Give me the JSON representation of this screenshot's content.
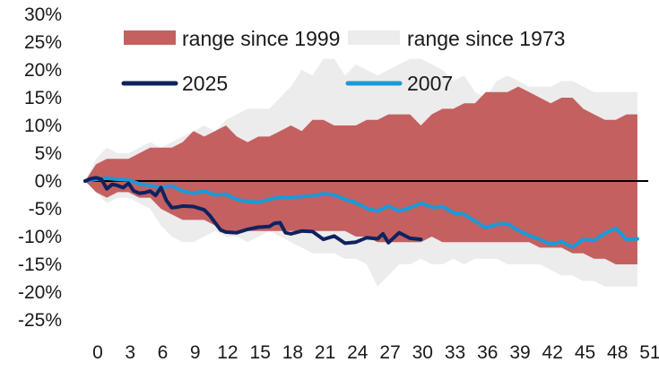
{
  "chart_data": {
    "type": "line",
    "xlim": [
      0,
      52
    ],
    "ylim": [
      -25,
      30
    ],
    "y_ticks": [
      "30%",
      "25%",
      "20%",
      "15%",
      "10%",
      "5%",
      "0%",
      "-5%",
      "-10%",
      "-15%",
      "-20%",
      "-25%"
    ],
    "y_tick_values": [
      30,
      25,
      20,
      15,
      10,
      5,
      0,
      -5,
      -10,
      -15,
      -20,
      -25
    ],
    "x_ticks": [
      "0",
      "3",
      "6",
      "9",
      "12",
      "15",
      "18",
      "21",
      "24",
      "27",
      "30",
      "33",
      "36",
      "39",
      "42",
      "45",
      "48",
      "51"
    ],
    "x_tick_values": [
      0,
      3,
      6,
      9,
      12,
      15,
      18,
      21,
      24,
      27,
      30,
      33,
      36,
      39,
      42,
      45,
      48,
      51
    ],
    "legend": {
      "range_1999": "range since 1999",
      "range_1973": "range since 1973",
      "s2025": "2025",
      "s2007": "2007"
    },
    "colors": {
      "range_1999": "#c46060",
      "range_1973": "#ececec",
      "s2025": "#0f2260",
      "s2007": "#1a9ad8"
    },
    "ranges": [
      {
        "name": "range since 1973",
        "x": [
          0,
          1,
          2,
          3,
          4,
          5,
          6,
          7,
          8,
          9,
          10,
          11,
          12,
          13,
          14,
          15,
          16,
          17,
          18,
          19,
          20,
          21,
          22,
          23,
          24,
          25,
          26,
          27,
          28,
          29,
          30,
          31,
          32,
          33,
          34,
          35,
          36,
          37,
          38,
          39,
          40,
          41,
          42,
          43,
          44,
          45,
          46,
          47,
          48,
          49,
          50,
          51
        ],
        "upper": [
          0,
          4,
          6,
          5,
          5,
          6,
          7,
          6,
          7,
          8,
          9,
          10,
          9,
          11,
          12,
          13,
          13,
          13,
          15,
          17,
          20,
          19,
          22,
          22,
          19,
          21,
          20,
          19,
          20,
          21,
          22,
          22,
          21,
          20,
          18,
          19,
          16,
          15,
          18,
          19,
          18,
          17,
          17,
          17,
          18,
          18,
          17,
          16,
          16,
          16,
          16,
          16
        ],
        "lower": [
          0,
          -2,
          -4,
          -3,
          -3,
          -4,
          -5,
          -8,
          -10,
          -11,
          -11,
          -10,
          -9,
          -10,
          -10,
          -11,
          -10,
          -9,
          -10,
          -11,
          -12,
          -13,
          -13,
          -13,
          -14,
          -14,
          -15,
          -19,
          -17,
          -15,
          -15,
          -14,
          -15,
          -15,
          -14,
          -15,
          -14,
          -14,
          -14,
          -15,
          -15,
          -15,
          -15,
          -16,
          -17,
          -17,
          -18,
          -18,
          -19,
          -19,
          -19,
          -19
        ]
      },
      {
        "name": "range since 1999",
        "x": [
          0,
          1,
          2,
          3,
          4,
          5,
          6,
          7,
          8,
          9,
          10,
          11,
          12,
          13,
          14,
          15,
          16,
          17,
          18,
          19,
          20,
          21,
          22,
          23,
          24,
          25,
          26,
          27,
          28,
          29,
          30,
          31,
          32,
          33,
          34,
          35,
          36,
          37,
          38,
          39,
          40,
          41,
          42,
          43,
          44,
          45,
          46,
          47,
          48,
          49,
          50,
          51
        ],
        "upper": [
          0,
          3,
          4,
          4,
          4,
          5,
          6,
          6,
          6,
          7,
          9,
          8,
          9,
          10,
          8,
          7,
          8,
          8,
          9,
          10,
          9,
          11,
          11,
          10,
          10,
          10,
          11,
          11,
          12,
          12,
          12,
          10,
          12,
          13,
          13,
          14,
          14,
          16,
          16,
          16,
          17,
          16,
          15,
          14,
          15,
          15,
          13,
          12,
          11,
          11,
          12,
          12
        ],
        "lower": [
          0,
          -2,
          -3,
          -2,
          -2,
          -3,
          -3,
          -5,
          -6,
          -7,
          -7,
          -7,
          -8,
          -9,
          -9,
          -9,
          -9,
          -9,
          -9,
          -9,
          -9,
          -9,
          -9,
          -9,
          -9,
          -10,
          -10,
          -11,
          -11,
          -11,
          -11,
          -11,
          -10,
          -11,
          -11,
          -11,
          -11,
          -11,
          -11,
          -11,
          -11,
          -11,
          -12,
          -12,
          -12,
          -13,
          -13,
          -14,
          -14,
          -15,
          -15,
          -15
        ]
      }
    ],
    "series": [
      {
        "name": "2025",
        "x": [
          0,
          0.5,
          1,
          1.5,
          2,
          2.5,
          3,
          3.5,
          4,
          4.5,
          5,
          5.5,
          6,
          6.5,
          7,
          7.5,
          8,
          8.5,
          9,
          10,
          11,
          11.5,
          12,
          12.5,
          13,
          14,
          15,
          16,
          17,
          17.5,
          18,
          18.5,
          19,
          20,
          21,
          22,
          23,
          24,
          25,
          26,
          27,
          27.5,
          28,
          29,
          30,
          31
        ],
        "y": [
          0,
          0.4,
          0.6,
          0.3,
          -1.4,
          -0.6,
          -0.8,
          -1.2,
          -0.4,
          -1.8,
          -2.2,
          -2.1,
          -1.8,
          -2.6,
          -1.2,
          -3.5,
          -4.8,
          -4.7,
          -4.5,
          -4.6,
          -5.2,
          -6.2,
          -7.5,
          -8.8,
          -9.2,
          -9.3,
          -8.7,
          -8.3,
          -8.2,
          -7.6,
          -7.5,
          -9.3,
          -9.5,
          -9.0,
          -9.1,
          -10.5,
          -9.9,
          -11.2,
          -11.0,
          -10.2,
          -10.4,
          -9.5,
          -11.1,
          -9.3,
          -10.3,
          -10.5
        ]
      },
      {
        "name": "2007",
        "x": [
          0,
          1,
          2,
          3,
          4,
          5,
          6,
          7,
          8,
          9,
          10,
          11,
          12,
          13,
          14,
          15,
          16,
          17,
          18,
          19,
          20,
          21,
          22,
          23,
          24,
          25,
          26,
          27,
          28,
          29,
          30,
          31,
          32,
          33,
          34,
          35,
          36,
          37,
          38,
          39,
          40,
          41,
          42,
          43,
          44,
          45,
          46,
          47,
          48,
          49,
          50,
          51
        ],
        "y": [
          0,
          0.3,
          0.5,
          0.3,
          0.2,
          -0.5,
          -0.8,
          -1.2,
          -0.9,
          -1.8,
          -2.2,
          -1.8,
          -2.5,
          -2.4,
          -3.3,
          -3.7,
          -3.8,
          -3.3,
          -2.9,
          -2.9,
          -2.8,
          -2.7,
          -2.3,
          -2.5,
          -3.3,
          -3.9,
          -4.9,
          -5.4,
          -4.5,
          -5.4,
          -4.8,
          -4.0,
          -4.7,
          -4.6,
          -5.7,
          -6.0,
          -7.2,
          -8.4,
          -7.8,
          -7.7,
          -8.9,
          -9.8,
          -10.5,
          -11.4,
          -10.9,
          -11.9,
          -10.5,
          -10.7,
          -9.4,
          -8.5,
          -10.5,
          -10.4
        ]
      }
    ]
  }
}
